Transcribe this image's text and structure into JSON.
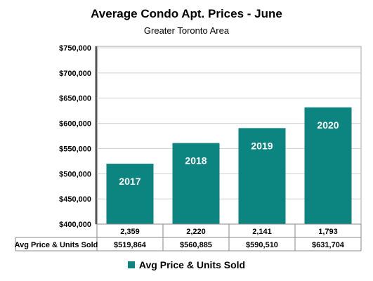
{
  "chart_data": {
    "type": "bar",
    "title": "Average Condo Apt. Prices - June",
    "subtitle": "Greater Toronto Area",
    "categories": [
      "2017",
      "2018",
      "2019",
      "2020"
    ],
    "series": [
      {
        "name": "Avg Price & Units Sold",
        "values": [
          519864,
          560885,
          590510,
          631704
        ],
        "value_labels": [
          "$519,864",
          "$560,885",
          "$590,510",
          "$631,704"
        ]
      }
    ],
    "units_sold": [
      "2,359",
      "2,220",
      "2,141",
      "1,793"
    ],
    "ylim": [
      400000,
      750000
    ],
    "yticks": [
      {
        "value": 400000,
        "label": "$400,000"
      },
      {
        "value": 450000,
        "label": "$450,000"
      },
      {
        "value": 500000,
        "label": "$500,000"
      },
      {
        "value": 550000,
        "label": "$550,000"
      },
      {
        "value": 600000,
        "label": "$600,000"
      },
      {
        "value": 650000,
        "label": "$650,000"
      },
      {
        "value": 700000,
        "label": "$700,000"
      },
      {
        "value": 750000,
        "label": "$750,000"
      }
    ],
    "grid": true,
    "legend_position": "bottom",
    "bar_color": "#0c8480",
    "table_row_label": "Avg Price & Units Sold",
    "data_table": true
  }
}
